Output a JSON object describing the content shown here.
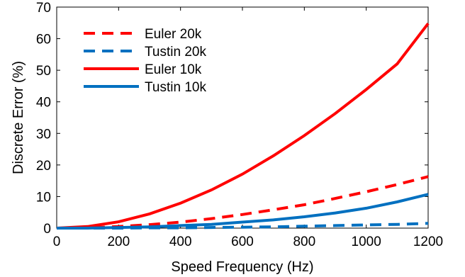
{
  "chart_data": {
    "type": "line",
    "title": "",
    "xlabel": "Speed Frequency (Hz)",
    "ylabel": "Discrete Error (%)",
    "xlim": [
      0,
      1200
    ],
    "ylim": [
      0,
      70
    ],
    "xticks": [
      0,
      200,
      400,
      600,
      800,
      1000,
      1200
    ],
    "yticks": [
      0,
      10,
      20,
      30,
      40,
      50,
      60,
      70
    ],
    "grid": false,
    "legend_position": "top-left",
    "series": [
      {
        "name": "Euler 20k",
        "color": "#ff0000",
        "dash": "dashed",
        "x": [
          0,
          100,
          200,
          300,
          400,
          500,
          600,
          700,
          800,
          900,
          1000,
          1100,
          1200
        ],
        "y": [
          0,
          0.1,
          0.5,
          1.1,
          1.9,
          3.0,
          4.3,
          5.8,
          7.4,
          9.4,
          11.5,
          13.8,
          16.3
        ]
      },
      {
        "name": "Tustin 20k",
        "color": "#0070c0",
        "dash": "dashed",
        "x": [
          0,
          100,
          200,
          300,
          400,
          500,
          600,
          700,
          800,
          900,
          1000,
          1100,
          1200
        ],
        "y": [
          0,
          0.0,
          0.0,
          0.1,
          0.1,
          0.2,
          0.3,
          0.4,
          0.6,
          0.8,
          1.0,
          1.2,
          1.5
        ]
      },
      {
        "name": "Euler 10k",
        "color": "#ff0000",
        "dash": "solid",
        "x": [
          0,
          100,
          200,
          300,
          400,
          500,
          600,
          700,
          800,
          900,
          1000,
          1100,
          1200
        ],
        "y": [
          0,
          0.5,
          2.0,
          4.5,
          7.9,
          12.1,
          17.1,
          22.9,
          29.3,
          36.3,
          43.9,
          52.0,
          64.8
        ]
      },
      {
        "name": "Tustin 10k",
        "color": "#0070c0",
        "dash": "solid",
        "x": [
          0,
          100,
          200,
          300,
          400,
          500,
          600,
          700,
          800,
          900,
          1000,
          1100,
          1200
        ],
        "y": [
          0,
          0.0,
          0.2,
          0.4,
          0.8,
          1.2,
          1.9,
          2.6,
          3.6,
          4.8,
          6.3,
          8.3,
          10.7
        ]
      }
    ]
  }
}
